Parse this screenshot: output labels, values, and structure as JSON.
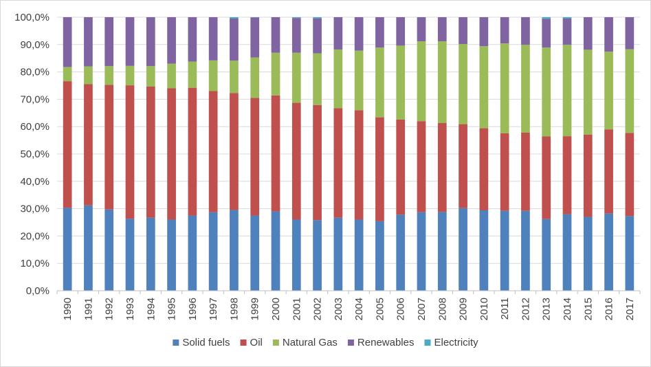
{
  "chart_data": {
    "type": "bar",
    "stacked": true,
    "normalized": true,
    "title": "",
    "xlabel": "",
    "ylabel": "",
    "ylim": [
      0,
      100
    ],
    "y_ticks": [
      "0,0%",
      "10,0%",
      "20,0%",
      "30,0%",
      "40,0%",
      "50,0%",
      "60,0%",
      "70,0%",
      "80,0%",
      "90,0%",
      "100,0%"
    ],
    "grid": "horizontal",
    "legend_position": "bottom",
    "categories": [
      "1990",
      "1991",
      "1992",
      "1993",
      "1994",
      "1995",
      "1996",
      "1997",
      "1998",
      "1999",
      "2000",
      "2001",
      "2002",
      "2003",
      "2004",
      "2005",
      "2006",
      "2007",
      "2008",
      "2009",
      "2010",
      "2011",
      "2012",
      "2013",
      "2014",
      "2015",
      "2016",
      "2017"
    ],
    "series": [
      {
        "name": "Solid fuels",
        "color": "#4F81BD",
        "values": [
          30.3,
          31.2,
          29.7,
          26.3,
          26.7,
          26.0,
          27.5,
          28.7,
          29.5,
          27.5,
          29.0,
          26.0,
          25.8,
          26.7,
          26.0,
          25.4,
          27.8,
          28.7,
          28.8,
          30.2,
          29.4,
          29.2,
          29.2,
          26.2,
          28.0,
          27.0,
          28.2,
          27.3
        ]
      },
      {
        "name": "Oil",
        "color": "#C0504D",
        "values": [
          46.3,
          44.3,
          45.6,
          48.8,
          48.0,
          48.0,
          46.7,
          44.3,
          42.8,
          43.0,
          42.4,
          42.7,
          42.1,
          40.0,
          40.0,
          38.0,
          34.8,
          33.3,
          32.5,
          30.7,
          30.0,
          28.4,
          28.6,
          30.2,
          28.5,
          30.1,
          30.8,
          30.4
        ]
      },
      {
        "name": "Natural Gas",
        "color": "#9BBB59",
        "values": [
          5.2,
          6.5,
          6.8,
          7.1,
          7.4,
          9.0,
          9.6,
          11.2,
          11.8,
          14.8,
          15.6,
          18.3,
          18.9,
          21.5,
          21.8,
          25.5,
          27.0,
          29.2,
          29.9,
          29.3,
          30.0,
          32.8,
          32.1,
          32.5,
          33.4,
          31.0,
          28.4,
          30.6
        ]
      },
      {
        "name": "Renewables",
        "color": "#8064A2",
        "values": [
          18.2,
          18.0,
          17.9,
          17.8,
          17.9,
          17.0,
          16.2,
          15.8,
          15.4,
          14.6,
          13.0,
          12.7,
          12.8,
          11.8,
          12.2,
          11.1,
          10.4,
          8.8,
          8.8,
          9.8,
          10.6,
          9.6,
          10.1,
          10.5,
          9.6,
          11.9,
          12.6,
          11.7
        ]
      },
      {
        "name": "Electricity",
        "color": "#4BACC6",
        "values": [
          0.0,
          0.0,
          0.0,
          0.0,
          0.0,
          0.0,
          0.0,
          0.0,
          0.5,
          0.1,
          0.0,
          0.3,
          0.4,
          0.0,
          0.0,
          0.0,
          0.0,
          0.0,
          0.0,
          0.0,
          0.0,
          0.0,
          0.0,
          0.6,
          0.5,
          0.0,
          0.0,
          0.0
        ]
      }
    ]
  }
}
